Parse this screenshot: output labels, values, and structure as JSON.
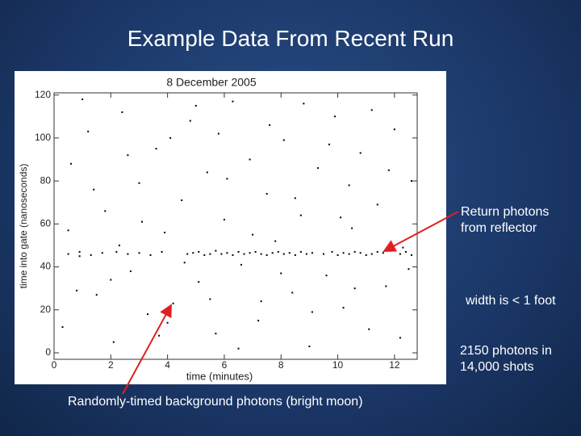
{
  "slide": {
    "title": "Example Data From Recent Run"
  },
  "chart_data": {
    "type": "scatter",
    "title": "8 December 2005",
    "x_label": "time (minutes)",
    "y_label": "time into gate (nanoseconds)",
    "annotations": [
      "Return photons from reflector",
      "width is < 1 foot",
      "2150 photons in 14,000 shots",
      "Randomly-timed background photons (bright moon)"
    ],
    "color": "#000000",
    "xlim": [
      0,
      12.8
    ],
    "ylim": [
      -3,
      121
    ],
    "xticks": [
      0,
      2,
      4,
      6,
      8,
      10,
      12
    ],
    "yticks": [
      0,
      20,
      40,
      60,
      80,
      100,
      120
    ],
    "x": [
      0.3,
      0.6,
      0.9,
      1.2,
      1.5,
      1.8,
      2.1,
      2.4,
      2.7,
      3.0,
      3.3,
      3.6,
      3.9,
      4.2,
      4.5,
      4.8,
      5.1,
      5.4,
      5.7,
      6.0,
      6.3,
      6.6,
      6.9,
      7.2,
      7.5,
      7.8,
      8.1,
      8.4,
      8.7,
      9.0,
      9.3,
      9.6,
      9.9,
      10.2,
      10.5,
      10.8,
      11.1,
      11.4,
      11.7,
      12.0,
      12.3,
      12.6,
      0.5,
      1.0,
      1.4,
      2.0,
      2.6,
      3.1,
      3.7,
      4.1,
      4.6,
      5.0,
      5.5,
      6.1,
      6.5,
      7.0,
      7.6,
      8.0,
      8.5,
      9.1,
      9.7,
      10.1,
      10.6,
      11.2,
      11.8,
      12.2,
      0.8,
      2.3,
      4.0,
      5.8,
      7.3,
      8.8,
      10.4,
      12.5,
      0.5,
      0.9,
      1.3,
      1.7,
      2.2,
      2.6,
      3.0,
      3.4,
      3.8,
      4.7,
      4.9,
      5.1,
      5.3,
      5.5,
      5.7,
      5.9,
      6.1,
      6.3,
      6.5,
      6.7,
      6.9,
      7.1,
      7.3,
      7.5,
      7.7,
      7.9,
      8.1,
      8.3,
      8.5,
      8.7,
      8.9,
      9.1,
      9.5,
      9.8,
      10.0,
      10.2,
      10.4,
      10.6,
      10.8,
      11.0,
      11.2,
      11.4,
      11.6,
      12.2,
      12.4,
      12.6
    ],
    "values": [
      12,
      88,
      45,
      103,
      27,
      66,
      5,
      112,
      38,
      79,
      18,
      95,
      56,
      23,
      71,
      108,
      33,
      84,
      9,
      62,
      117,
      41,
      90,
      15,
      74,
      52,
      99,
      28,
      64,
      3,
      86,
      36,
      110,
      21,
      58,
      93,
      11,
      69,
      31,
      104,
      49,
      80,
      57,
      118,
      76,
      34,
      92,
      61,
      8,
      100,
      42,
      115,
      25,
      81,
      2,
      55,
      106,
      37,
      72,
      19,
      97,
      63,
      30,
      113,
      85,
      7,
      29,
      50,
      14,
      102,
      24,
      116,
      78,
      39,
      46,
      47,
      45.5,
      46.5,
      47,
      46,
      46.5,
      45.5,
      47,
      46,
      46.5,
      47,
      45.5,
      46,
      47.5,
      46,
      46.5,
      45.5,
      47,
      46,
      46.5,
      47,
      46,
      45.5,
      46.5,
      47,
      46,
      46.5,
      45.5,
      47,
      46,
      46.5,
      46,
      47,
      45.5,
      46.5,
      46,
      47,
      46.5,
      45.5,
      46,
      47,
      46.5,
      46,
      47,
      45.5
    ]
  }
}
